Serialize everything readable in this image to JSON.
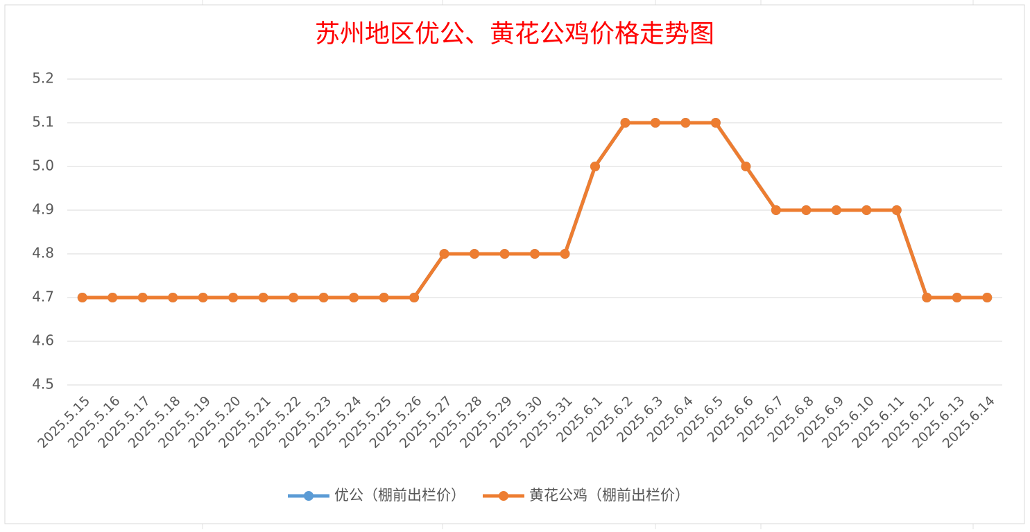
{
  "chart_data": {
    "type": "line",
    "title": "苏州地区优公、黄花公鸡价格走势图",
    "categories": [
      "2025.5.15",
      "2025.5.16",
      "2025.5.17",
      "2025.5.18",
      "2025.5.19",
      "2025.5.20",
      "2025.5.21",
      "2025.5.22",
      "2025.5.23",
      "2025.5.24",
      "2025.5.25",
      "2025.5.26",
      "2025.5.27",
      "2025.5.28",
      "2025.5.29",
      "2025.5.30",
      "2025.5.31",
      "2025.6.1",
      "2025.6.2",
      "2025.6.3",
      "2025.6.4",
      "2025.6.5",
      "2025.6.6",
      "2025.6.7",
      "2025.6.8",
      "2025.6.9",
      "2025.6.10",
      "2025.6.11",
      "2025.6.12",
      "2025.6.13",
      "2025.6.14"
    ],
    "series": [
      {
        "name": "优公（棚前出栏价）",
        "color": "#5b9bd5",
        "values": [
          4.7,
          4.7,
          4.7,
          4.7,
          4.7,
          4.7,
          4.7,
          4.7,
          4.7,
          4.7,
          4.7,
          4.7,
          4.8,
          4.8,
          4.8,
          4.8,
          4.8,
          5.0,
          5.1,
          5.1,
          5.1,
          5.1,
          5.0,
          4.9,
          4.9,
          4.9,
          4.9,
          4.9,
          4.7,
          4.7,
          4.7
        ]
      },
      {
        "name": "黄花公鸡（棚前出栏价）",
        "color": "#ed7d31",
        "values": [
          4.7,
          4.7,
          4.7,
          4.7,
          4.7,
          4.7,
          4.7,
          4.7,
          4.7,
          4.7,
          4.7,
          4.7,
          4.8,
          4.8,
          4.8,
          4.8,
          4.8,
          5.0,
          5.1,
          5.1,
          5.1,
          5.1,
          5.0,
          4.9,
          4.9,
          4.9,
          4.9,
          4.9,
          4.7,
          4.7,
          4.7
        ]
      }
    ],
    "ylim": [
      4.5,
      5.2
    ],
    "yticks": [
      4.5,
      4.6,
      4.7,
      4.8,
      4.9,
      {
        "value": 5,
        "label": "5.0"
      },
      5.1,
      5.2
    ],
    "grid": true,
    "legend": "bottom"
  }
}
